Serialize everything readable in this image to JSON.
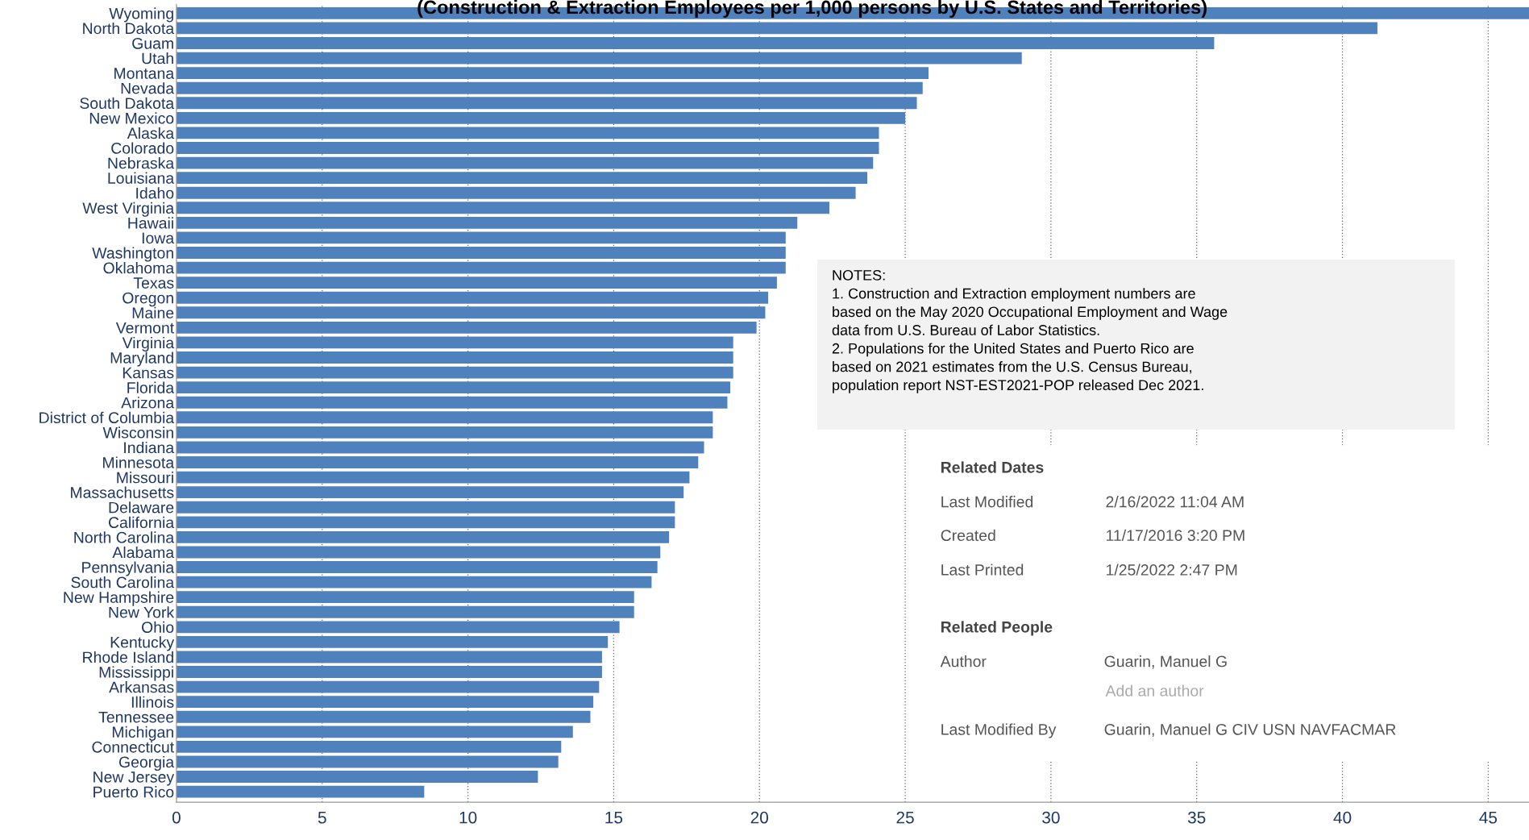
{
  "chart_data": {
    "type": "bar",
    "orientation": "horizontal",
    "title": "(Construction & Extraction Employees per 1,000 persons by U.S. States and Territories)",
    "categories": [
      "Wyoming",
      "North Dakota",
      "Guam",
      "Utah",
      "Montana",
      "Nevada",
      "South Dakota",
      "New Mexico",
      "Alaska",
      "Colorado",
      "Nebraska",
      "Louisiana",
      "Idaho",
      "West Virginia",
      "Hawaii",
      "Iowa",
      "Washington",
      "Oklahoma",
      "Texas",
      "Oregon",
      "Maine",
      "Vermont",
      "Virginia",
      "Maryland",
      "Kansas",
      "Florida",
      "Arizona",
      "District of Columbia",
      "Wisconsin",
      "Indiana",
      "Minnesota",
      "Missouri",
      "Massachusetts",
      "Delaware",
      "California",
      "North Carolina",
      "Alabama",
      "Pennsylvania",
      "South Carolina",
      "New Hampshire",
      "New York",
      "Ohio",
      "Kentucky",
      "Rhode Island",
      "Mississippi",
      "Arkansas",
      "Illinois",
      "Tennessee",
      "Michigan",
      "Connecticut",
      "Georgia",
      "New Jersey",
      "Puerto Rico"
    ],
    "values": [
      46.4,
      41.2,
      35.6,
      29.0,
      25.8,
      25.6,
      25.4,
      25.0,
      24.1,
      24.1,
      23.9,
      23.7,
      23.3,
      22.4,
      21.3,
      20.9,
      20.9,
      20.9,
      20.6,
      20.3,
      20.2,
      19.9,
      19.1,
      19.1,
      19.1,
      19.0,
      18.9,
      18.4,
      18.4,
      18.1,
      17.9,
      17.6,
      17.4,
      17.1,
      17.1,
      16.9,
      16.6,
      16.5,
      16.3,
      15.7,
      15.7,
      15.2,
      14.8,
      14.6,
      14.6,
      14.5,
      14.3,
      14.2,
      13.6,
      13.2,
      13.1,
      12.4,
      8.5
    ],
    "color": "#4f81bd",
    "xlim": [
      0,
      46.4
    ],
    "xticks": [
      0,
      5,
      10,
      15,
      20,
      25,
      30,
      35,
      40,
      45
    ],
    "grid": "x",
    "annotations": [
      "NOTES:\n1. Construction and Extraction employment numbers are\nbased on the May 2020 Occupational Employment and Wage\ndata from U.S. Bureau of Labor Statistics.\n2. Populations for the United States and Puerto Rico are\nbased on 2021 estimates from the U.S. Census Bureau,\npopulation report NST-EST2021-POP released Dec 2021.",
      "Related Dates",
      "Last Modified",
      "2/16/2022 11:04 AM",
      "Created",
      "11/17/2016 3:20 PM",
      "Last Printed",
      "1/25/2022 2:47 PM",
      "Related People",
      "Author",
      "Guarin, Manuel G",
      "Add an author",
      "Last Modified By",
      "Guarin, Manuel G CIV USN NAVFACMAR"
    ]
  }
}
